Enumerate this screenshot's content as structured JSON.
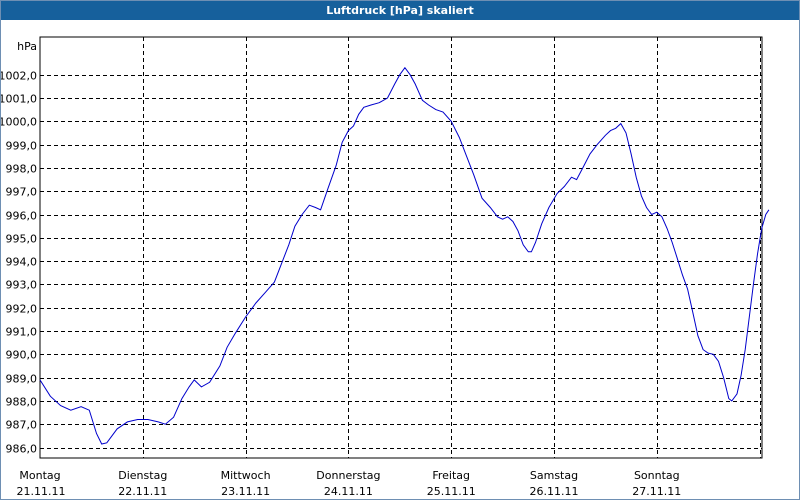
{
  "window": {
    "title": "Luftdruck [hPa] skaliert"
  },
  "chart_data": {
    "type": "line",
    "title": "Luftdruck [hPa] skaliert",
    "ylabel": "hPa",
    "xlabel": "",
    "ylim": [
      985.5,
      1002.6
    ],
    "xlim": [
      0,
      7
    ],
    "grid": true,
    "yticks": [
      "986,0",
      "987,0",
      "988,0",
      "989,0",
      "990,0",
      "991,0",
      "992,0",
      "993,0",
      "994,0",
      "995,0",
      "996,0",
      "997,0",
      "998,0",
      "999,0",
      "1000,0",
      "1001,0",
      "1002,0"
    ],
    "ytick_values": [
      986,
      987,
      988,
      989,
      990,
      991,
      992,
      993,
      994,
      995,
      996,
      997,
      998,
      999,
      1000,
      1001,
      1002
    ],
    "xticks": [
      {
        "day": "Montag",
        "date": "21.11.11"
      },
      {
        "day": "Dienstag",
        "date": "22.11.11"
      },
      {
        "day": "Mittwoch",
        "date": "23.11.11"
      },
      {
        "day": "Donnerstag",
        "date": "24.11.11"
      },
      {
        "day": "Freitag",
        "date": "25.11.11"
      },
      {
        "day": "Samstag",
        "date": "26.11.11"
      },
      {
        "day": "Sonntag",
        "date": "27.11.11"
      }
    ],
    "colors": {
      "line": "#0000cc",
      "grid": "#000000",
      "title_bar": "#16609c"
    },
    "series": [
      {
        "points": [
          [
            0.0,
            988.9
          ],
          [
            0.1,
            988.2
          ],
          [
            0.2,
            987.8
          ],
          [
            0.3,
            987.6
          ],
          [
            0.4,
            987.75
          ],
          [
            0.48,
            987.6
          ],
          [
            0.55,
            986.6
          ],
          [
            0.6,
            986.15
          ],
          [
            0.65,
            986.2
          ],
          [
            0.75,
            986.8
          ],
          [
            0.85,
            987.1
          ],
          [
            0.95,
            987.2
          ],
          [
            1.05,
            987.2
          ],
          [
            1.15,
            987.1
          ],
          [
            1.22,
            987.0
          ],
          [
            1.3,
            987.3
          ],
          [
            1.38,
            988.1
          ],
          [
            1.45,
            988.6
          ],
          [
            1.5,
            988.9
          ],
          [
            1.57,
            988.6
          ],
          [
            1.65,
            988.8
          ],
          [
            1.75,
            989.5
          ],
          [
            1.82,
            990.3
          ],
          [
            1.9,
            990.9
          ],
          [
            2.0,
            991.6
          ],
          [
            2.1,
            992.2
          ],
          [
            2.2,
            992.7
          ],
          [
            2.28,
            993.1
          ],
          [
            2.35,
            993.9
          ],
          [
            2.42,
            994.7
          ],
          [
            2.48,
            995.5
          ],
          [
            2.55,
            996.0
          ],
          [
            2.62,
            996.4
          ],
          [
            2.68,
            996.3
          ],
          [
            2.73,
            996.2
          ],
          [
            2.8,
            997.1
          ],
          [
            2.88,
            998.1
          ],
          [
            2.94,
            999.1
          ],
          [
            3.0,
            999.6
          ],
          [
            3.05,
            999.8
          ],
          [
            3.1,
            1000.3
          ],
          [
            3.15,
            1000.6
          ],
          [
            3.22,
            1000.7
          ],
          [
            3.3,
            1000.8
          ],
          [
            3.38,
            1001.0
          ],
          [
            3.45,
            1001.6
          ],
          [
            3.5,
            1002.0
          ],
          [
            3.55,
            1002.3
          ],
          [
            3.6,
            1002.0
          ],
          [
            3.65,
            1001.6
          ],
          [
            3.72,
            1000.9
          ],
          [
            3.78,
            1000.7
          ],
          [
            3.85,
            1000.5
          ],
          [
            3.92,
            1000.4
          ],
          [
            4.0,
            1000.0
          ],
          [
            4.08,
            999.3
          ],
          [
            4.15,
            998.5
          ],
          [
            4.22,
            997.7
          ],
          [
            4.3,
            996.7
          ],
          [
            4.38,
            996.3
          ],
          [
            4.45,
            995.9
          ],
          [
            4.5,
            995.8
          ],
          [
            4.55,
            995.9
          ],
          [
            4.6,
            995.7
          ],
          [
            4.65,
            995.3
          ],
          [
            4.7,
            994.7
          ],
          [
            4.75,
            994.4
          ],
          [
            4.78,
            994.4
          ],
          [
            4.82,
            994.8
          ],
          [
            4.88,
            995.6
          ],
          [
            4.95,
            996.3
          ],
          [
            5.03,
            996.9
          ],
          [
            5.1,
            997.2
          ],
          [
            5.17,
            997.6
          ],
          [
            5.22,
            997.5
          ],
          [
            5.28,
            998.0
          ],
          [
            5.35,
            998.6
          ],
          [
            5.42,
            999.0
          ],
          [
            5.5,
            999.4
          ],
          [
            5.55,
            999.6
          ],
          [
            5.6,
            999.7
          ],
          [
            5.65,
            999.9
          ],
          [
            5.7,
            999.5
          ],
          [
            5.75,
            998.6
          ],
          [
            5.8,
            997.6
          ],
          [
            5.85,
            996.8
          ],
          [
            5.9,
            996.3
          ],
          [
            5.95,
            996.0
          ],
          [
            6.0,
            996.1
          ],
          [
            6.05,
            995.9
          ],
          [
            6.1,
            995.4
          ],
          [
            6.15,
            994.8
          ],
          [
            6.2,
            994.1
          ],
          [
            6.25,
            993.4
          ],
          [
            6.3,
            992.8
          ],
          [
            6.35,
            991.8
          ],
          [
            6.4,
            990.8
          ],
          [
            6.45,
            990.2
          ],
          [
            6.5,
            990.05
          ],
          [
            6.55,
            990.0
          ],
          [
            6.6,
            989.7
          ],
          [
            6.65,
            989.0
          ],
          [
            6.7,
            988.1
          ],
          [
            6.73,
            988.0
          ],
          [
            6.78,
            988.3
          ],
          [
            6.82,
            989.1
          ],
          [
            6.86,
            990.2
          ],
          [
            6.9,
            991.6
          ],
          [
            6.94,
            993.0
          ],
          [
            6.98,
            994.3
          ],
          [
            7.02,
            995.4
          ],
          [
            7.06,
            996.0
          ],
          [
            7.09,
            996.2
          ]
        ]
      }
    ]
  }
}
